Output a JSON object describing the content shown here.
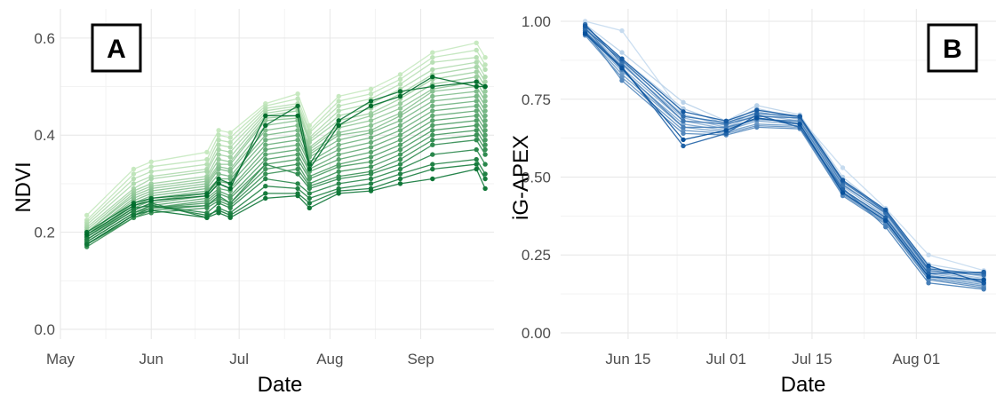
{
  "chart_data": [
    {
      "type": "line",
      "panel_label": "A",
      "xlabel": "Date",
      "ylabel": "NDVI",
      "x_tick_labels": [
        "May",
        "Jun",
        "Jul",
        "Aug",
        "Sep"
      ],
      "x_ticks": [
        "2023-05-01",
        "2023-06-01",
        "2023-07-01",
        "2023-08-01",
        "2023-09-01"
      ],
      "y_ticks": [
        0.0,
        0.2,
        0.4,
        0.6
      ],
      "y_tick_labels": [
        "0.0",
        "0.2",
        "0.4",
        "0.6"
      ],
      "xlim": [
        "2023-05-01",
        "2023-09-26"
      ],
      "ylim": [
        -0.02,
        0.66
      ],
      "grid": true,
      "legend": "none",
      "color_range": [
        "#c7e9c0",
        "#006d2c"
      ],
      "x": [
        "2023-05-10",
        "2023-05-26",
        "2023-06-01",
        "2023-06-20",
        "2023-06-24",
        "2023-06-28",
        "2023-07-10",
        "2023-07-21",
        "2023-07-25",
        "2023-08-04",
        "2023-08-15",
        "2023-08-25",
        "2023-09-05",
        "2023-09-20",
        "2023-09-23"
      ],
      "series": [
        {
          "values": [
            0.235,
            0.33,
            0.345,
            0.365,
            0.41,
            0.405,
            0.465,
            0.485,
            0.42,
            0.48,
            0.495,
            0.525,
            0.57,
            0.59,
            0.56
          ]
        },
        {
          "values": [
            0.225,
            0.32,
            0.335,
            0.35,
            0.4,
            0.395,
            0.46,
            0.475,
            0.41,
            0.47,
            0.485,
            0.515,
            0.56,
            0.575,
            0.545
          ]
        },
        {
          "values": [
            0.22,
            0.31,
            0.325,
            0.34,
            0.39,
            0.385,
            0.455,
            0.465,
            0.405,
            0.46,
            0.475,
            0.505,
            0.55,
            0.56,
            0.535
          ]
        },
        {
          "values": [
            0.215,
            0.3,
            0.315,
            0.33,
            0.38,
            0.375,
            0.45,
            0.46,
            0.395,
            0.45,
            0.465,
            0.495,
            0.535,
            0.55,
            0.52
          ]
        },
        {
          "values": [
            0.21,
            0.29,
            0.31,
            0.325,
            0.37,
            0.365,
            0.445,
            0.455,
            0.39,
            0.44,
            0.455,
            0.485,
            0.525,
            0.54,
            0.51
          ]
        },
        {
          "values": [
            0.205,
            0.285,
            0.3,
            0.315,
            0.36,
            0.355,
            0.44,
            0.45,
            0.385,
            0.43,
            0.445,
            0.475,
            0.515,
            0.53,
            0.5
          ]
        },
        {
          "values": [
            0.2,
            0.28,
            0.295,
            0.31,
            0.35,
            0.345,
            0.435,
            0.44,
            0.375,
            0.42,
            0.44,
            0.465,
            0.505,
            0.52,
            0.49
          ]
        },
        {
          "values": [
            0.2,
            0.275,
            0.29,
            0.305,
            0.34,
            0.34,
            0.43,
            0.435,
            0.37,
            0.415,
            0.43,
            0.455,
            0.495,
            0.51,
            0.48
          ]
        },
        {
          "values": [
            0.195,
            0.27,
            0.285,
            0.3,
            0.335,
            0.33,
            0.42,
            0.43,
            0.365,
            0.405,
            0.42,
            0.445,
            0.49,
            0.5,
            0.47
          ]
        },
        {
          "values": [
            0.195,
            0.265,
            0.28,
            0.295,
            0.33,
            0.325,
            0.41,
            0.42,
            0.36,
            0.4,
            0.41,
            0.44,
            0.48,
            0.49,
            0.46
          ]
        },
        {
          "values": [
            0.19,
            0.26,
            0.275,
            0.29,
            0.32,
            0.315,
            0.4,
            0.41,
            0.355,
            0.39,
            0.405,
            0.43,
            0.47,
            0.48,
            0.45
          ]
        },
        {
          "values": [
            0.19,
            0.255,
            0.27,
            0.285,
            0.31,
            0.31,
            0.39,
            0.4,
            0.345,
            0.38,
            0.395,
            0.42,
            0.46,
            0.47,
            0.44
          ]
        },
        {
          "values": [
            0.185,
            0.25,
            0.265,
            0.28,
            0.305,
            0.3,
            0.38,
            0.39,
            0.34,
            0.37,
            0.385,
            0.41,
            0.45,
            0.46,
            0.43
          ]
        },
        {
          "values": [
            0.185,
            0.245,
            0.26,
            0.275,
            0.3,
            0.29,
            0.37,
            0.38,
            0.33,
            0.36,
            0.375,
            0.4,
            0.44,
            0.45,
            0.42
          ]
        },
        {
          "values": [
            0.18,
            0.24,
            0.255,
            0.27,
            0.29,
            0.285,
            0.36,
            0.37,
            0.325,
            0.35,
            0.365,
            0.39,
            0.43,
            0.44,
            0.41
          ]
        },
        {
          "values": [
            0.18,
            0.24,
            0.25,
            0.265,
            0.285,
            0.275,
            0.35,
            0.36,
            0.315,
            0.34,
            0.355,
            0.38,
            0.42,
            0.43,
            0.4
          ]
        },
        {
          "values": [
            0.175,
            0.235,
            0.25,
            0.26,
            0.28,
            0.27,
            0.34,
            0.35,
            0.31,
            0.335,
            0.345,
            0.37,
            0.41,
            0.42,
            0.39
          ]
        },
        {
          "values": [
            0.175,
            0.23,
            0.245,
            0.255,
            0.27,
            0.26,
            0.33,
            0.34,
            0.3,
            0.325,
            0.335,
            0.36,
            0.4,
            0.41,
            0.38
          ]
        },
        {
          "values": [
            0.17,
            0.23,
            0.24,
            0.25,
            0.265,
            0.255,
            0.32,
            0.33,
            0.295,
            0.315,
            0.325,
            0.35,
            0.39,
            0.4,
            0.37
          ]
        },
        {
          "values": [
            0.175,
            0.235,
            0.25,
            0.255,
            0.275,
            0.26,
            0.34,
            0.32,
            0.29,
            0.31,
            0.32,
            0.34,
            0.38,
            0.39,
            0.36
          ]
        },
        {
          "values": [
            0.18,
            0.24,
            0.255,
            0.24,
            0.26,
            0.25,
            0.31,
            0.3,
            0.28,
            0.3,
            0.31,
            0.33,
            0.36,
            0.37,
            0.34
          ]
        },
        {
          "values": [
            0.185,
            0.245,
            0.26,
            0.23,
            0.25,
            0.24,
            0.295,
            0.29,
            0.27,
            0.29,
            0.3,
            0.32,
            0.34,
            0.35,
            0.32
          ]
        },
        {
          "values": [
            0.19,
            0.25,
            0.255,
            0.235,
            0.245,
            0.235,
            0.28,
            0.28,
            0.26,
            0.285,
            0.29,
            0.31,
            0.33,
            0.34,
            0.31
          ]
        },
        {
          "values": [
            0.175,
            0.235,
            0.245,
            0.23,
            0.24,
            0.23,
            0.27,
            0.275,
            0.25,
            0.28,
            0.285,
            0.3,
            0.31,
            0.33,
            0.29
          ]
        },
        {
          "values": [
            0.2,
            0.26,
            0.27,
            0.28,
            0.31,
            0.3,
            0.42,
            0.46,
            0.34,
            0.43,
            0.47,
            0.49,
            0.5,
            0.51,
            0.5
          ]
        },
        {
          "values": [
            0.195,
            0.255,
            0.265,
            0.275,
            0.3,
            0.29,
            0.44,
            0.44,
            0.33,
            0.42,
            0.46,
            0.48,
            0.52,
            0.5,
            0.5
          ]
        }
      ]
    },
    {
      "type": "line",
      "panel_label": "B",
      "xlabel": "Date",
      "ylabel": "iG-APEX",
      "x_tick_labels": [
        "Jun 15",
        "Jul 01",
        "Jul 15",
        "Aug 01"
      ],
      "x_ticks": [
        "2023-06-15",
        "2023-07-01",
        "2023-07-15",
        "2023-08-01"
      ],
      "y_ticks": [
        0.0,
        0.25,
        0.5,
        0.75,
        1.0
      ],
      "y_tick_labels": [
        "0.00",
        "0.25",
        "0.50",
        "0.75",
        "1.00"
      ],
      "xlim": [
        "2023-06-04",
        "2023-08-14"
      ],
      "ylim": [
        -0.02,
        1.04
      ],
      "grid": true,
      "legend": "none",
      "color_range": [
        "#c6dbef",
        "#08519c"
      ],
      "x": [
        "2023-06-08",
        "2023-06-14",
        "2023-06-24",
        "2023-07-01",
        "2023-07-06",
        "2023-07-13",
        "2023-07-20",
        "2023-07-27",
        "2023-08-03",
        "2023-08-12"
      ],
      "series": [
        {
          "values": [
            1.0,
            0.97,
            0.7,
            0.67,
            0.7,
            0.69,
            0.53,
            0.4,
            0.25,
            0.2
          ]
        },
        {
          "values": [
            0.99,
            0.9,
            0.74,
            0.68,
            0.73,
            0.7,
            0.5,
            0.39,
            0.22,
            0.19
          ]
        },
        {
          "values": [
            0.985,
            0.88,
            0.72,
            0.67,
            0.72,
            0.69,
            0.49,
            0.385,
            0.21,
            0.18
          ]
        },
        {
          "values": [
            0.98,
            0.87,
            0.7,
            0.665,
            0.71,
            0.685,
            0.48,
            0.38,
            0.2,
            0.175
          ]
        },
        {
          "values": [
            0.975,
            0.86,
            0.69,
            0.66,
            0.7,
            0.68,
            0.47,
            0.375,
            0.195,
            0.17
          ]
        },
        {
          "values": [
            0.97,
            0.85,
            0.68,
            0.655,
            0.69,
            0.675,
            0.46,
            0.37,
            0.19,
            0.165
          ]
        },
        {
          "values": [
            0.965,
            0.84,
            0.67,
            0.65,
            0.68,
            0.67,
            0.455,
            0.365,
            0.185,
            0.16
          ]
        },
        {
          "values": [
            0.96,
            0.83,
            0.66,
            0.645,
            0.67,
            0.665,
            0.45,
            0.36,
            0.18,
            0.155
          ]
        },
        {
          "values": [
            0.955,
            0.82,
            0.65,
            0.64,
            0.665,
            0.66,
            0.445,
            0.355,
            0.175,
            0.15
          ]
        },
        {
          "values": [
            0.97,
            0.81,
            0.64,
            0.635,
            0.66,
            0.655,
            0.44,
            0.35,
            0.17,
            0.145
          ]
        },
        {
          "values": [
            0.98,
            0.845,
            0.66,
            0.66,
            0.685,
            0.68,
            0.465,
            0.34,
            0.16,
            0.14
          ]
        },
        {
          "values": [
            0.99,
            0.865,
            0.68,
            0.67,
            0.695,
            0.69,
            0.475,
            0.385,
            0.2,
            0.185
          ]
        },
        {
          "values": [
            0.975,
            0.875,
            0.695,
            0.675,
            0.705,
            0.695,
            0.485,
            0.39,
            0.205,
            0.19
          ]
        },
        {
          "values": [
            0.965,
            0.855,
            0.6,
            0.64,
            0.7,
            0.66,
            0.46,
            0.37,
            0.19,
            0.195
          ]
        },
        {
          "values": [
            0.985,
            0.88,
            0.71,
            0.68,
            0.715,
            0.695,
            0.49,
            0.395,
            0.215,
            0.16
          ]
        },
        {
          "values": [
            0.96,
            0.85,
            0.62,
            0.65,
            0.69,
            0.67,
            0.45,
            0.36,
            0.18,
            0.17
          ]
        }
      ]
    }
  ]
}
